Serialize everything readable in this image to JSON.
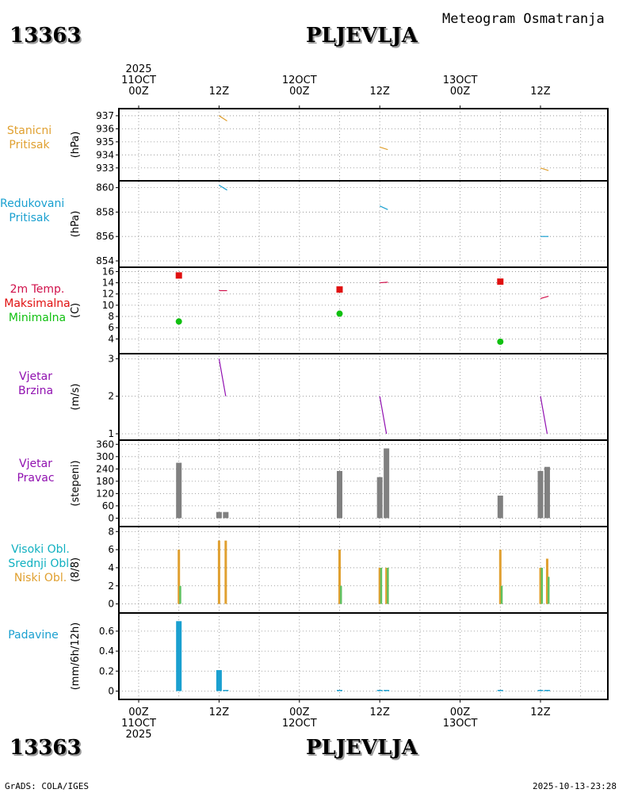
{
  "header": {
    "station_id": "13363",
    "station_name": "PLJEVLJA",
    "title": "Meteogram Osmatranja"
  },
  "footer": {
    "station_id": "13363",
    "station_name": "PLJEVLJA",
    "credit": "GrADS: COLA/IGES",
    "timestamp": "2025-10-13-23:28"
  },
  "time_axis": {
    "top_labels": [
      {
        "line1": "2025",
        "line2": "11OCT",
        "line3": "00Z"
      },
      {
        "line1": "",
        "line2": "",
        "line3": "12Z"
      },
      {
        "line1": "",
        "line2": "12OCT",
        "line3": "00Z"
      },
      {
        "line1": "",
        "line2": "",
        "line3": "12Z"
      },
      {
        "line1": "",
        "line2": "13OCT",
        "line3": "00Z"
      },
      {
        "line1": "",
        "line2": "",
        "line3": "12Z"
      }
    ],
    "bottom_labels": [
      {
        "line1": "00Z",
        "line2": "11OCT",
        "line3": "2025"
      },
      {
        "line1": "12Z",
        "line2": "",
        "line3": ""
      },
      {
        "line1": "00Z",
        "line2": "12OCT",
        "line3": ""
      },
      {
        "line1": "12Z",
        "line2": "",
        "line3": ""
      },
      {
        "line1": "00Z",
        "line2": "13OCT",
        "line3": ""
      },
      {
        "line1": "12Z",
        "line2": "",
        "line3": ""
      }
    ]
  },
  "panels": {
    "pressure": {
      "label1": "Stanicni",
      "label2": "Pritisak",
      "unit": "(hPa)",
      "color": "#e0a030"
    },
    "reduced": {
      "label1": "Redukovani",
      "label2": "Pritisak",
      "unit": "(hPa)",
      "color": "#1aa0d0"
    },
    "temp": {
      "label1": "2m Temp.",
      "label2": "Maksimalna",
      "label3": "Minimalna",
      "unit": "(C)",
      "color1": "#d0104a",
      "color2": "#e01010",
      "color3": "#10c010"
    },
    "wind_speed": {
      "label1": "Vjetar",
      "label2": "Brzina",
      "unit": "(m/s)",
      "color": "#9010b0"
    },
    "wind_dir": {
      "label1": "Vjetar",
      "label2": "Pravac",
      "unit": "(stepeni)",
      "color": "#9010b0"
    },
    "clouds": {
      "label1": "Visoki Obl.",
      "label2": "Srednji Obl.",
      "label3": "Niski Obl.",
      "unit": "(8/8)",
      "color1": "#10b0c0",
      "color2": "#10b0c0",
      "color3": "#e0a030"
    },
    "precip": {
      "label1": "Padavine",
      "unit": "(mm/6h/12h)",
      "color": "#1aa0d0"
    }
  },
  "chart_data": [
    {
      "type": "line",
      "title": "Stanicni Pritisak",
      "ylabel": "(hPa)",
      "ylim": [
        932.5,
        937.3
      ],
      "yticks": [
        937,
        936,
        935,
        934,
        933
      ],
      "series": [
        {
          "name": "pressure",
          "x": [
            12,
            13.2
          ],
          "values": [
            937.0,
            936.6
          ]
        },
        {
          "name": "pressure",
          "x": [
            36,
            37.2
          ],
          "values": [
            934.6,
            934.4
          ]
        },
        {
          "name": "pressure",
          "x": [
            60,
            61.2
          ],
          "values": [
            933.0,
            932.8
          ]
        }
      ]
    },
    {
      "type": "line",
      "title": "Redukovani Pritisak",
      "ylabel": "(hPa)",
      "ylim": [
        854,
        860.3
      ],
      "yticks": [
        860,
        858,
        856,
        854
      ],
      "series": [
        {
          "name": "reduced",
          "x": [
            12,
            13.2
          ],
          "values": [
            860.2,
            859.8
          ]
        },
        {
          "name": "reduced",
          "x": [
            36,
            37.2
          ],
          "values": [
            858.5,
            858.2
          ]
        },
        {
          "name": "reduced",
          "x": [
            60,
            61.2
          ],
          "values": [
            856.0,
            856.0
          ]
        }
      ]
    },
    {
      "type": "line",
      "title": "2m Temp. Maksimalna Minimalna",
      "ylabel": "(C)",
      "ylim": [
        2.5,
        16.2
      ],
      "yticks": [
        16,
        14,
        12,
        10,
        8,
        6,
        4
      ],
      "series": [
        {
          "name": "2m Temp.",
          "x": [
            12,
            13.2
          ],
          "values": [
            12.6,
            12.6
          ]
        },
        {
          "name": "2m Temp.",
          "x": [
            36,
            37.2
          ],
          "values": [
            14.0,
            14.1
          ]
        },
        {
          "name": "2m Temp.",
          "x": [
            60,
            61.2
          ],
          "values": [
            11.2,
            11.6
          ]
        }
      ],
      "max_points": {
        "x": [
          6,
          30,
          54
        ],
        "values": [
          15.3,
          12.8,
          14.2
        ]
      },
      "min_points": {
        "x": [
          6,
          30,
          54
        ],
        "values": [
          7.1,
          8.5,
          3.5
        ]
      }
    },
    {
      "type": "line",
      "title": "Vjetar Brzina",
      "ylabel": "(m/s)",
      "ylim": [
        1,
        3.05
      ],
      "yticks": [
        3,
        2,
        1
      ],
      "series": [
        {
          "name": "wind speed",
          "x": [
            12,
            13
          ],
          "values": [
            3.0,
            2.0
          ]
        },
        {
          "name": "wind speed",
          "x": [
            36,
            37
          ],
          "values": [
            2.0,
            1.0
          ]
        },
        {
          "name": "wind speed",
          "x": [
            60,
            61
          ],
          "values": [
            2.0,
            1.0
          ]
        }
      ]
    },
    {
      "type": "bar",
      "title": "Vjetar Pravac",
      "ylabel": "(stepeni)",
      "ylim": [
        -10,
        365
      ],
      "yticks": [
        360,
        300,
        240,
        180,
        120,
        60,
        0
      ],
      "x": [
        6,
        12,
        13,
        30,
        36,
        37,
        54,
        60,
        61
      ],
      "values": [
        270,
        30,
        30,
        230,
        200,
        340,
        110,
        230,
        250
      ]
    },
    {
      "type": "bar",
      "title": "Visoki Obl. Srednji Obl. Niski Obl.",
      "ylabel": "(8/8)",
      "ylim": [
        -0.3,
        8.2
      ],
      "yticks": [
        8,
        6,
        4,
        2,
        0
      ],
      "x": [
        6,
        12,
        13,
        30,
        36,
        37,
        54,
        60,
        61
      ],
      "series": [
        {
          "name": "Niski Obl.",
          "values": [
            6,
            7,
            7,
            6,
            4,
            4,
            6,
            4,
            5
          ]
        },
        {
          "name": "Srednji Obl.",
          "values": [
            2,
            0,
            0,
            2,
            4,
            4,
            2,
            4,
            3
          ]
        }
      ]
    },
    {
      "type": "bar",
      "title": "Padavine",
      "ylabel": "(mm/6h/12h)",
      "ylim": [
        -0.02,
        0.75
      ],
      "yticks": [
        0.6,
        0.4,
        0.2,
        0
      ],
      "x": [
        6,
        12,
        13,
        30,
        36,
        37,
        54,
        60,
        61
      ],
      "values": [
        0.7,
        0.21,
        0.0,
        0.0,
        0.0,
        0.0,
        0.0,
        0.0,
        0.0
      ]
    }
  ]
}
